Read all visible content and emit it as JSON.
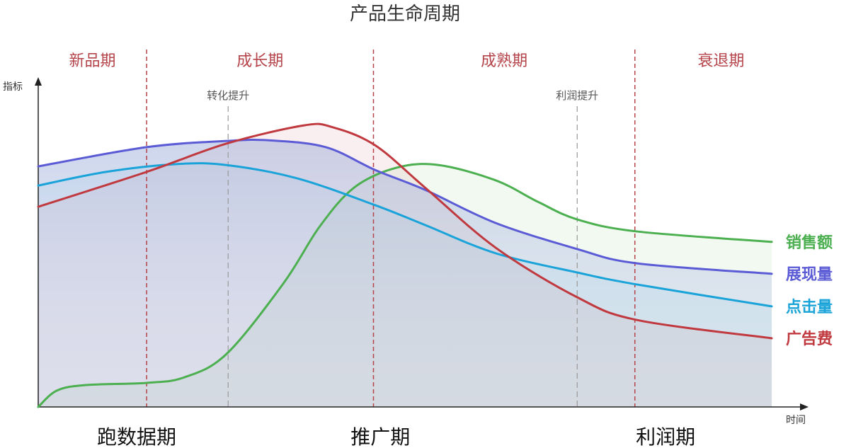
{
  "title": "产品生命周期",
  "y_axis_label": "指标",
  "x_axis_label": "时间",
  "phases": [
    {
      "label": "新品期",
      "from": 0,
      "to": 14.1
    },
    {
      "label": "成长期",
      "from": 14.1,
      "to": 43.6
    },
    {
      "label": "成熟期",
      "from": 43.6,
      "to": 77.6
    },
    {
      "label": "衰退期",
      "from": 77.6,
      "to": 100
    }
  ],
  "phase_dividers": [
    14.1,
    43.6,
    77.6
  ],
  "phase_color": "#b5434a",
  "annotations": [
    {
      "label": "转化提升",
      "x": 24.7
    },
    {
      "label": "利润提升",
      "x": 70.1
    }
  ],
  "bottom_labels": [
    {
      "label": "跑数据期",
      "x": 12.8
    },
    {
      "label": "推广期",
      "x": 44.5
    },
    {
      "label": "利润期",
      "x": 81.6
    }
  ],
  "chart_data": {
    "type": "line",
    "xlim": [
      0,
      100
    ],
    "ylim": [
      0,
      100
    ],
    "grid": false,
    "legend": "right, at line ends",
    "series": [
      {
        "name": "销售额",
        "color": "#4caf50",
        "points": [
          [
            0,
            0
          ],
          [
            2.4,
            5
          ],
          [
            6.1,
            6.7
          ],
          [
            14.1,
            7.4
          ],
          [
            19,
            9.1
          ],
          [
            24.5,
            16.3
          ],
          [
            31.9,
            38
          ],
          [
            36.6,
            55.4
          ],
          [
            41.1,
            67.4
          ],
          [
            46.6,
            73.5
          ],
          [
            52.1,
            74.3
          ],
          [
            59.5,
            69.6
          ],
          [
            65,
            63
          ],
          [
            70.1,
            57.6
          ],
          [
            77.9,
            53.9
          ],
          [
            95.4,
            50.7
          ]
        ]
      },
      {
        "name": "展现量",
        "color": "#5b5bd6",
        "points": [
          [
            0,
            73.9
          ],
          [
            14.1,
            79.8
          ],
          [
            24.5,
            81.7
          ],
          [
            30,
            81.9
          ],
          [
            37.4,
            79.8
          ],
          [
            43.8,
            72.8
          ],
          [
            50.3,
            66.7
          ],
          [
            59.5,
            56.5
          ],
          [
            70.1,
            48.5
          ],
          [
            77.9,
            44.1
          ],
          [
            95.4,
            40.9
          ]
        ]
      },
      {
        "name": "点击量",
        "color": "#1aa3d9",
        "points": [
          [
            0,
            68
          ],
          [
            8.8,
            72.2
          ],
          [
            18,
            74.6
          ],
          [
            24.5,
            74.3
          ],
          [
            33.7,
            70.2
          ],
          [
            43.8,
            62
          ],
          [
            50.3,
            55.9
          ],
          [
            59.5,
            47.2
          ],
          [
            70.1,
            41.3
          ],
          [
            77.9,
            37.6
          ],
          [
            95.4,
            30.9
          ]
        ]
      },
      {
        "name": "广告费",
        "color": "#c0393f",
        "points": [
          [
            0,
            61.5
          ],
          [
            14.1,
            72.2
          ],
          [
            24.5,
            80.9
          ],
          [
            34.6,
            86.5
          ],
          [
            38.3,
            85.9
          ],
          [
            43.8,
            80.4
          ],
          [
            50.3,
            67.4
          ],
          [
            59.5,
            48.9
          ],
          [
            70.1,
            33.7
          ],
          [
            77.9,
            26.7
          ],
          [
            95.4,
            21.1
          ]
        ]
      }
    ]
  }
}
